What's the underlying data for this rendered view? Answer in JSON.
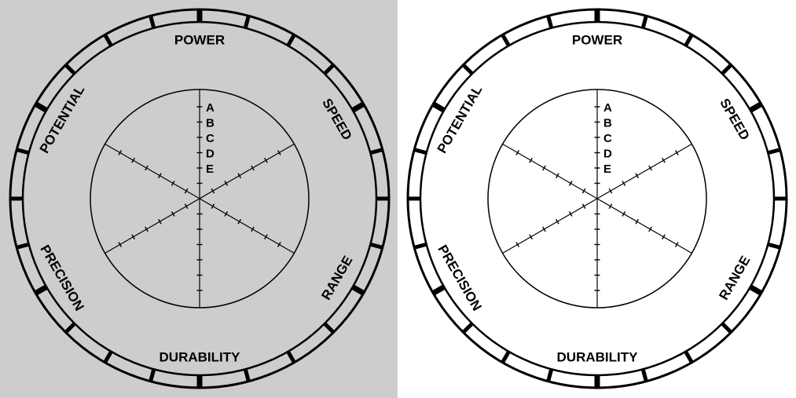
{
  "charts": [
    {
      "name": "stand-chart-gray",
      "background": "#cdcdcd",
      "ring_fill": "#cdcdcd",
      "stats": [
        "POWER",
        "SPEED",
        "RANGE",
        "DURABILITY",
        "PRECISION",
        "POTENTIAL"
      ],
      "grades": [
        "A",
        "B",
        "C",
        "D",
        "E"
      ]
    },
    {
      "name": "stand-chart-white",
      "background": "#ffffff",
      "ring_fill": "#ffffff",
      "stats": [
        "POWER",
        "SPEED",
        "RANGE",
        "DURABILITY",
        "PRECISION",
        "POTENTIAL"
      ],
      "grades": [
        "A",
        "B",
        "C",
        "D",
        "E"
      ]
    }
  ],
  "colors": {
    "line": "#000000"
  }
}
